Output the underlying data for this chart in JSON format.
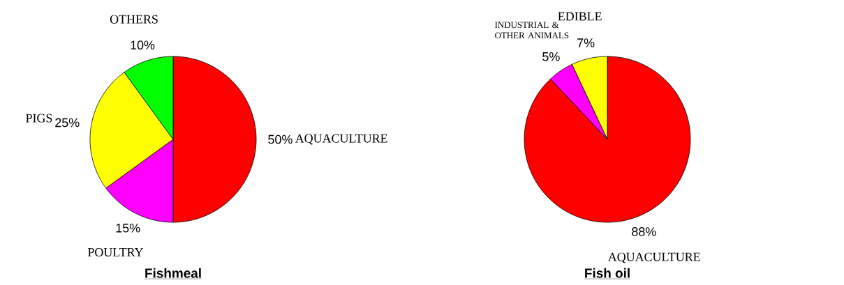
{
  "chart_data": [
    {
      "type": "pie",
      "title": "Fishmeal",
      "categories": [
        "AQUACULTURE",
        "POULTRY",
        "PIGS",
        "OTHERS"
      ],
      "values": [
        50,
        15,
        25,
        10
      ],
      "colors": [
        "#ff0000",
        "#ff00ff",
        "#ffff00",
        "#00ff00"
      ],
      "value_labels": [
        "50%",
        "15%",
        "25%",
        "10%"
      ]
    },
    {
      "type": "pie",
      "title": "Fish oil",
      "categories": [
        "AQUACULTURE",
        "INDUSTRIAL & OTHER ANIMALS",
        "EDIBLE"
      ],
      "values": [
        88,
        5,
        7
      ],
      "colors": [
        "#ff0000",
        "#ff00ff",
        "#ffff00"
      ],
      "value_labels": [
        "88%",
        "5%",
        "7%"
      ]
    }
  ]
}
